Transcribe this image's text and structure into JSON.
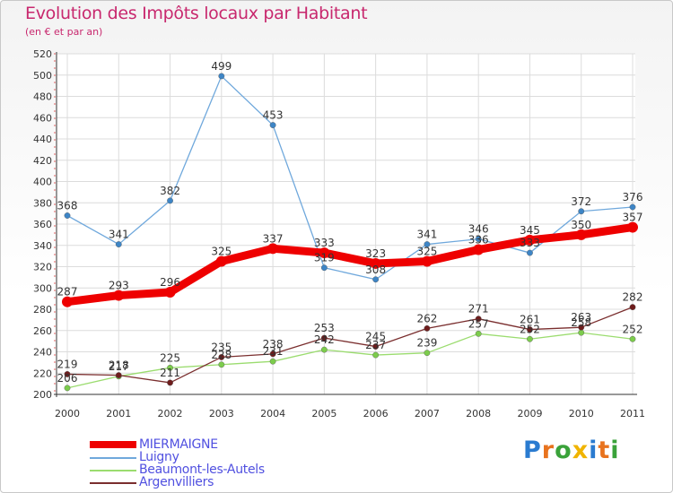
{
  "title": "Evolution des Impôts locaux par Habitant",
  "subtitle": "(en € et par an)",
  "logo": {
    "text": "Proxiti",
    "letters": [
      "P",
      "r",
      "o",
      "x",
      "i",
      "t",
      "i"
    ],
    "colors": [
      "#2a7bd0",
      "#e8731e",
      "#3aa23a",
      "#f0b400",
      "#2a7bd0",
      "#e8731e",
      "#3aa23a"
    ]
  },
  "chart_data": {
    "type": "line",
    "x": [
      "2000",
      "2001",
      "2002",
      "2003",
      "2004",
      "2005",
      "2006",
      "2007",
      "2008",
      "2009",
      "2010",
      "2011"
    ],
    "ylim": [
      200,
      520
    ],
    "yticks": [
      "200",
      "220",
      "240",
      "260",
      "280",
      "300",
      "320",
      "340",
      "360",
      "380",
      "400",
      "420",
      "440",
      "460",
      "480",
      "500",
      "520"
    ],
    "grid": true,
    "legend_position": "bottom-left",
    "series": [
      {
        "name": "MIERMAIGNE",
        "color": "#ee0000",
        "values": [
          287,
          293,
          296,
          325,
          337,
          333,
          323,
          325,
          336,
          345,
          350,
          357
        ],
        "labels": [
          "287",
          "293",
          "296",
          "325",
          "337",
          "333",
          "323",
          "325",
          "336",
          "345",
          "350",
          "357"
        ]
      },
      {
        "name": "Luigny",
        "color": "#6fa8dc",
        "marker": "#3d85c6",
        "values": [
          368,
          341,
          382,
          499,
          453,
          319,
          308,
          341,
          346,
          333,
          372,
          376
        ],
        "labels": [
          "368",
          "341",
          "382",
          "499",
          "453",
          "319",
          "308",
          "341",
          "346",
          "333",
          "372",
          "376"
        ]
      },
      {
        "name": "Beaumont-les-Autels",
        "color": "#9bdc6f",
        "marker": "#7ccc4c",
        "values": [
          206,
          217,
          225,
          228,
          231,
          242,
          237,
          239,
          257,
          252,
          258,
          252
        ],
        "labels": [
          "206",
          "217",
          "225",
          "228",
          "231",
          "242",
          "237",
          "239",
          "257",
          "252",
          "258",
          "252"
        ]
      },
      {
        "name": "Argenvilliers",
        "color": "#7a2e2e",
        "marker": "#6e1c1c",
        "values": [
          219,
          218,
          211,
          235,
          238,
          253,
          245,
          262,
          271,
          261,
          263,
          282
        ],
        "labels": [
          "219",
          "218",
          "211",
          "235",
          "238",
          "253",
          "245",
          "262",
          "271",
          "261",
          "263",
          "282"
        ]
      }
    ]
  }
}
